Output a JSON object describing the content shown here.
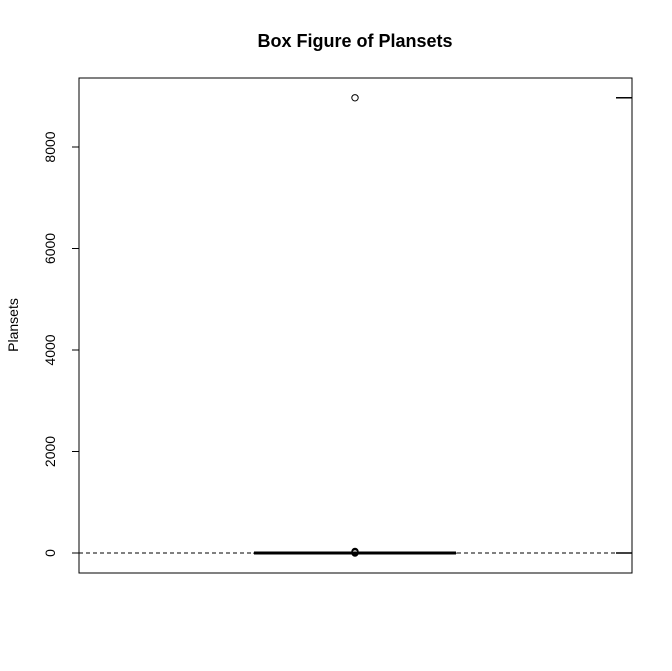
{
  "chart_data": {
    "type": "box",
    "title": "Box Figure of Plansets",
    "xlabel": "",
    "ylabel": "Plansets",
    "ylim": [
      -350,
      9400
    ],
    "yticks": [
      0,
      2000,
      4000,
      6000,
      8000
    ],
    "box": {
      "min": 0,
      "q1": 0,
      "median": 0,
      "q3": 0,
      "max": 0,
      "outliers": [
        0,
        10,
        20,
        30,
        8970
      ]
    },
    "reference_lines": [
      {
        "style": "dashed",
        "y": 0
      },
      {
        "style": "solid",
        "y": 8970
      },
      {
        "style": "solid",
        "y": 0
      }
    ],
    "colors": {
      "axis": "#000000",
      "box": "#000000",
      "background": "#ffffff"
    }
  }
}
